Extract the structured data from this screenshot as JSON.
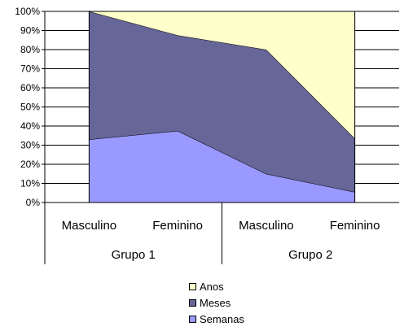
{
  "chart_data": {
    "type": "area",
    "stacked_percent": true,
    "categories": [
      "Masculino",
      "Feminino",
      "Masculino",
      "Feminino"
    ],
    "groups": [
      {
        "label": "Grupo 1",
        "categories": [
          "Masculino",
          "Feminino"
        ]
      },
      {
        "label": "Grupo 2",
        "categories": [
          "Masculino",
          "Feminino"
        ]
      }
    ],
    "series": [
      {
        "name": "Semanas",
        "color": "#9999ff",
        "values": [
          33,
          37.5,
          15,
          5.5
        ]
      },
      {
        "name": "Meses",
        "color": "#666699",
        "values": [
          67,
          50,
          65,
          28
        ]
      },
      {
        "name": "Anos",
        "color": "#ffffcc",
        "values": [
          0,
          12.5,
          20,
          66.5
        ]
      }
    ],
    "legend_order": [
      "Anos",
      "Meses",
      "Semanas"
    ],
    "ylim": [
      0,
      100
    ],
    "yticks": [
      "0%",
      "10%",
      "20%",
      "30%",
      "40%",
      "50%",
      "60%",
      "70%",
      "80%",
      "90%",
      "100%"
    ],
    "grid": true,
    "legend_position": "bottom",
    "title": "",
    "xlabel": "",
    "ylabel": ""
  }
}
